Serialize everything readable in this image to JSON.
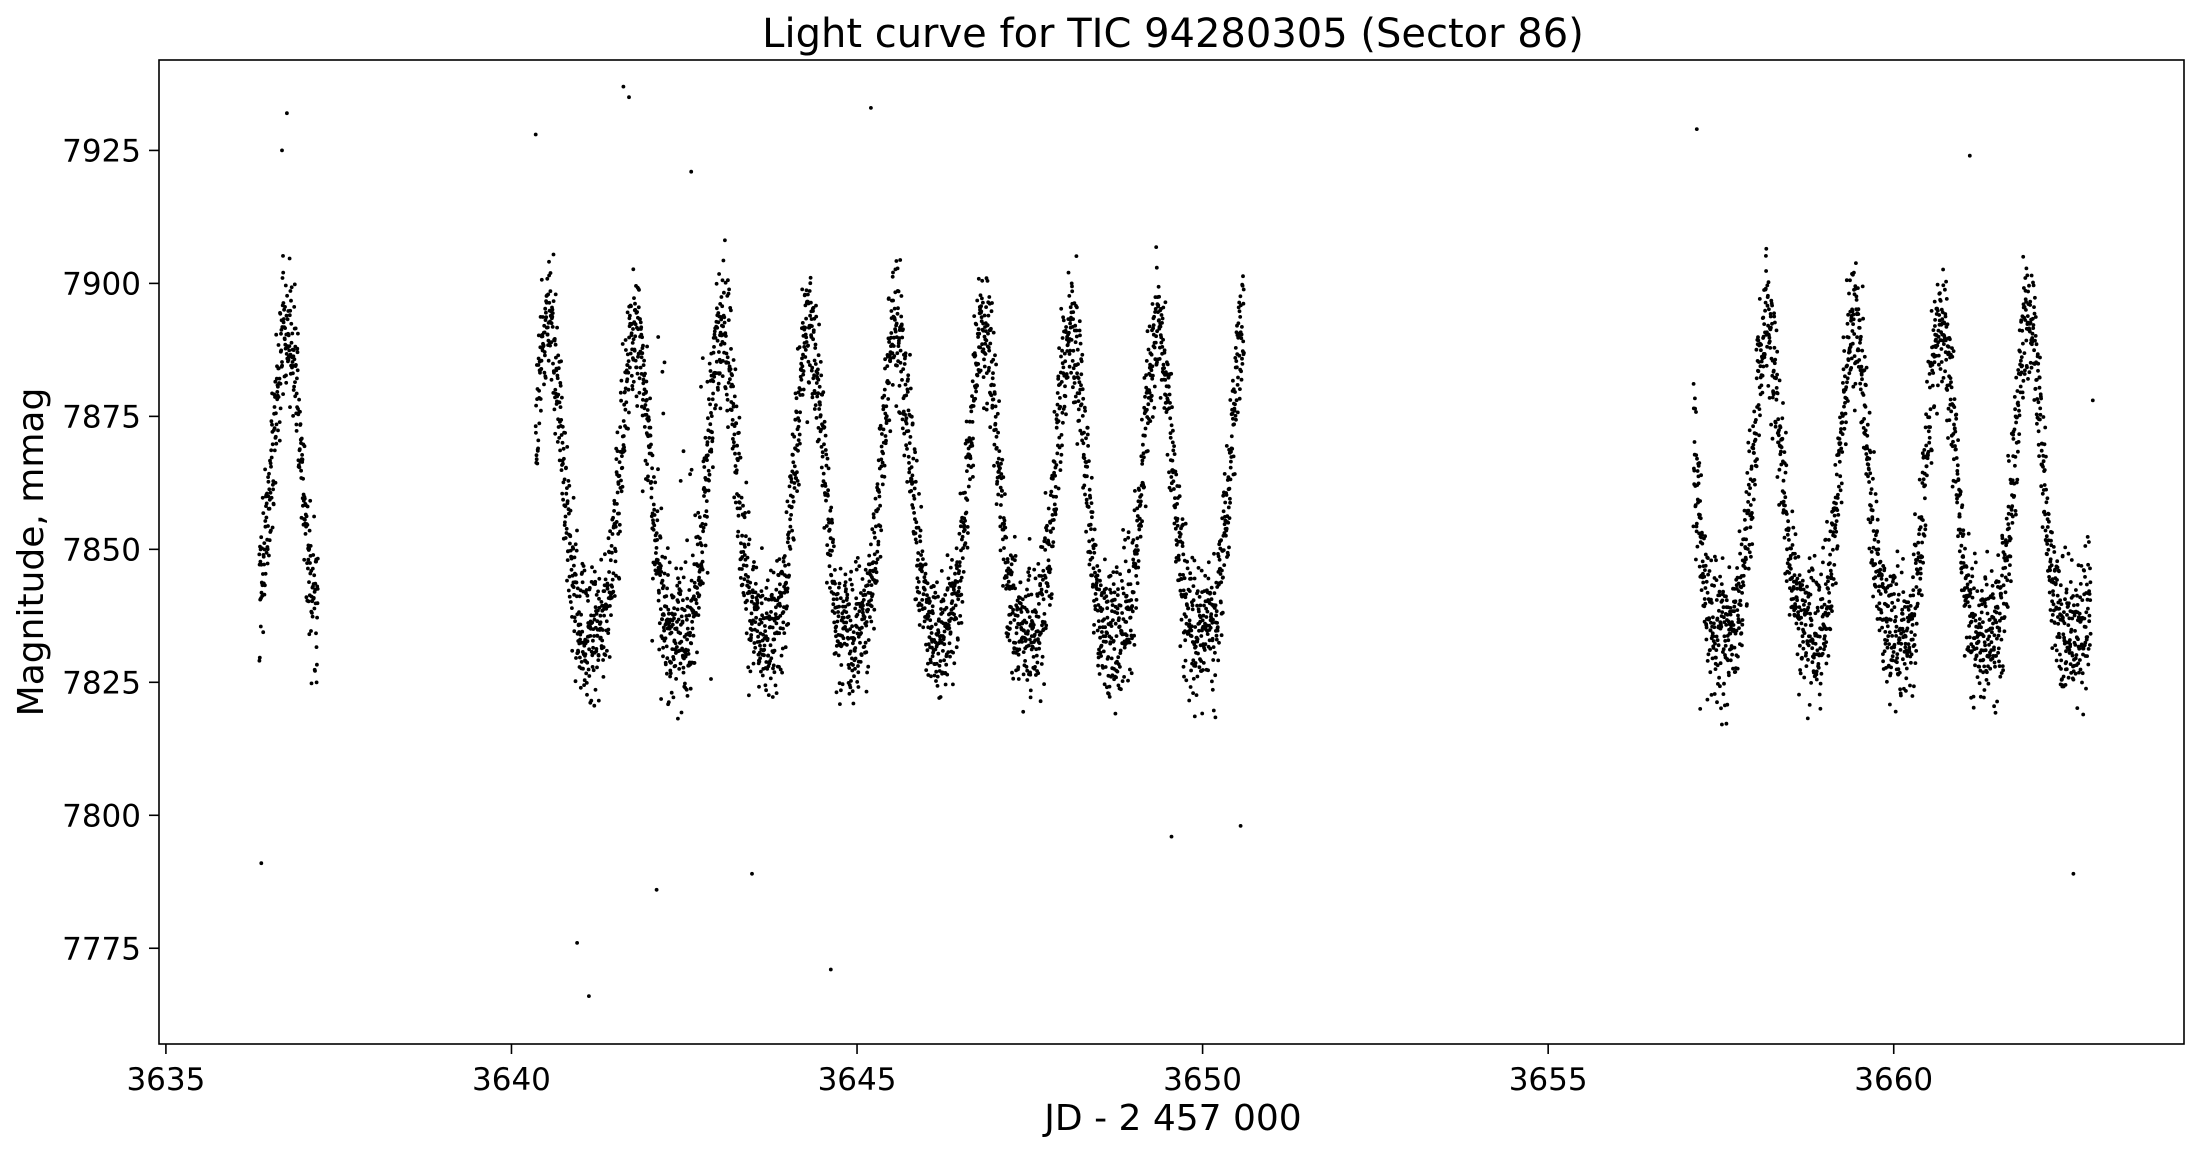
{
  "chart_data": {
    "type": "scatter",
    "title": "Light curve for TIC 94280305 (Sector 86)",
    "xlabel": "JD - 2 457 000",
    "ylabel": "Magnitude, mmag",
    "xlim": [
      3634.9,
      3664.2
    ],
    "ylim": [
      7757,
      7942
    ],
    "y_inverted": false,
    "grid": false,
    "legend": "none",
    "marker_color": "#000000",
    "xticks": [
      3635,
      3640,
      3645,
      3650,
      3655,
      3660
    ],
    "yticks": [
      7775,
      7800,
      7825,
      7850,
      7875,
      7900,
      7925
    ],
    "series": [
      {
        "segments": [
          {
            "range": [
              3636.35,
              3637.2
            ]
          },
          {
            "range": [
              3640.35,
              3650.6
            ]
          },
          {
            "range": [
              3657.1,
              3662.85
            ]
          }
        ],
        "variability": {
          "period_days": 1.26,
          "mean_mmag": 7856,
          "amplitude_mmag": 36,
          "scatter_mmag": 9
        },
        "points": [
          {
            "x": 3636.38,
            "y": 7791
          },
          {
            "x": 3636.75,
            "y": 7932
          },
          {
            "x": 3636.68,
            "y": 7925
          },
          {
            "x": 3640.35,
            "y": 7928
          },
          {
            "x": 3641.12,
            "y": 7766
          },
          {
            "x": 3640.95,
            "y": 7776
          },
          {
            "x": 3641.62,
            "y": 7937
          },
          {
            "x": 3641.7,
            "y": 7935
          },
          {
            "x": 3642.6,
            "y": 7921
          },
          {
            "x": 3642.1,
            "y": 7786
          },
          {
            "x": 3643.48,
            "y": 7789
          },
          {
            "x": 3644.62,
            "y": 7771
          },
          {
            "x": 3645.2,
            "y": 7933
          },
          {
            "x": 3649.55,
            "y": 7796
          },
          {
            "x": 3650.55,
            "y": 7798
          },
          {
            "x": 3657.15,
            "y": 7929
          },
          {
            "x": 3657.2,
            "y": 7820
          },
          {
            "x": 3661.1,
            "y": 7924
          },
          {
            "x": 3662.6,
            "y": 7789
          },
          {
            "x": 3662.88,
            "y": 7878
          }
        ]
      }
    ]
  }
}
